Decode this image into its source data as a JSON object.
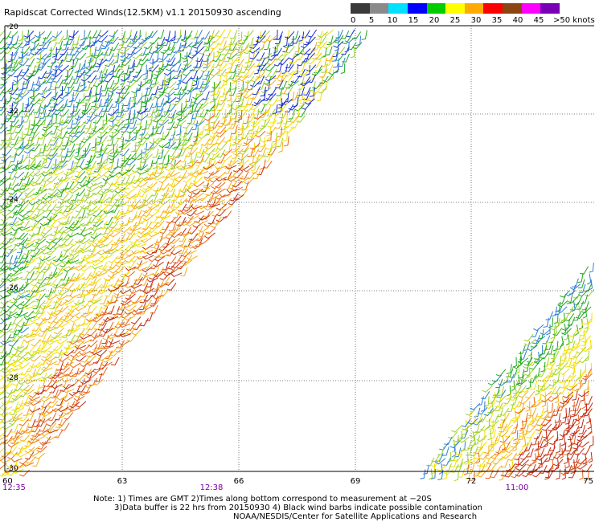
{
  "title": "Rapidscat Corrected Winds(12.5KM) v1.1 20150930 ascending",
  "legend": {
    "labels": [
      "0",
      "5",
      "10",
      "15",
      "20",
      "25",
      "30",
      "35",
      "40",
      "45",
      ">50 knots"
    ],
    "colors": [
      "#3a3a3a",
      "#8a8a8a",
      "#00e0ff",
      "#0000ff",
      "#00cc00",
      "#ffff00",
      "#ffaa00",
      "#ff0000",
      "#8b4513",
      "#ff00ff",
      "#7a00b5"
    ]
  },
  "axes": {
    "lat_labels": [
      "-20",
      "-22",
      "-24",
      "-26",
      "-28",
      "-30"
    ],
    "lon_labels": [
      "60",
      "63",
      "66",
      "69",
      "72",
      "75"
    ],
    "times": [
      "12:35",
      "12:38",
      "11:00"
    ]
  },
  "notes": {
    "line1": "Note: 1) Times are GMT 2)Times along bottom correspond to measurement at −20S",
    "line2": "3)Data buffer is 22 hrs from 20150930 4) Black wind barbs indicate possible contamination",
    "line3": "NOAA/NESDIS/Center for Satellite Applications and Research"
  }
}
